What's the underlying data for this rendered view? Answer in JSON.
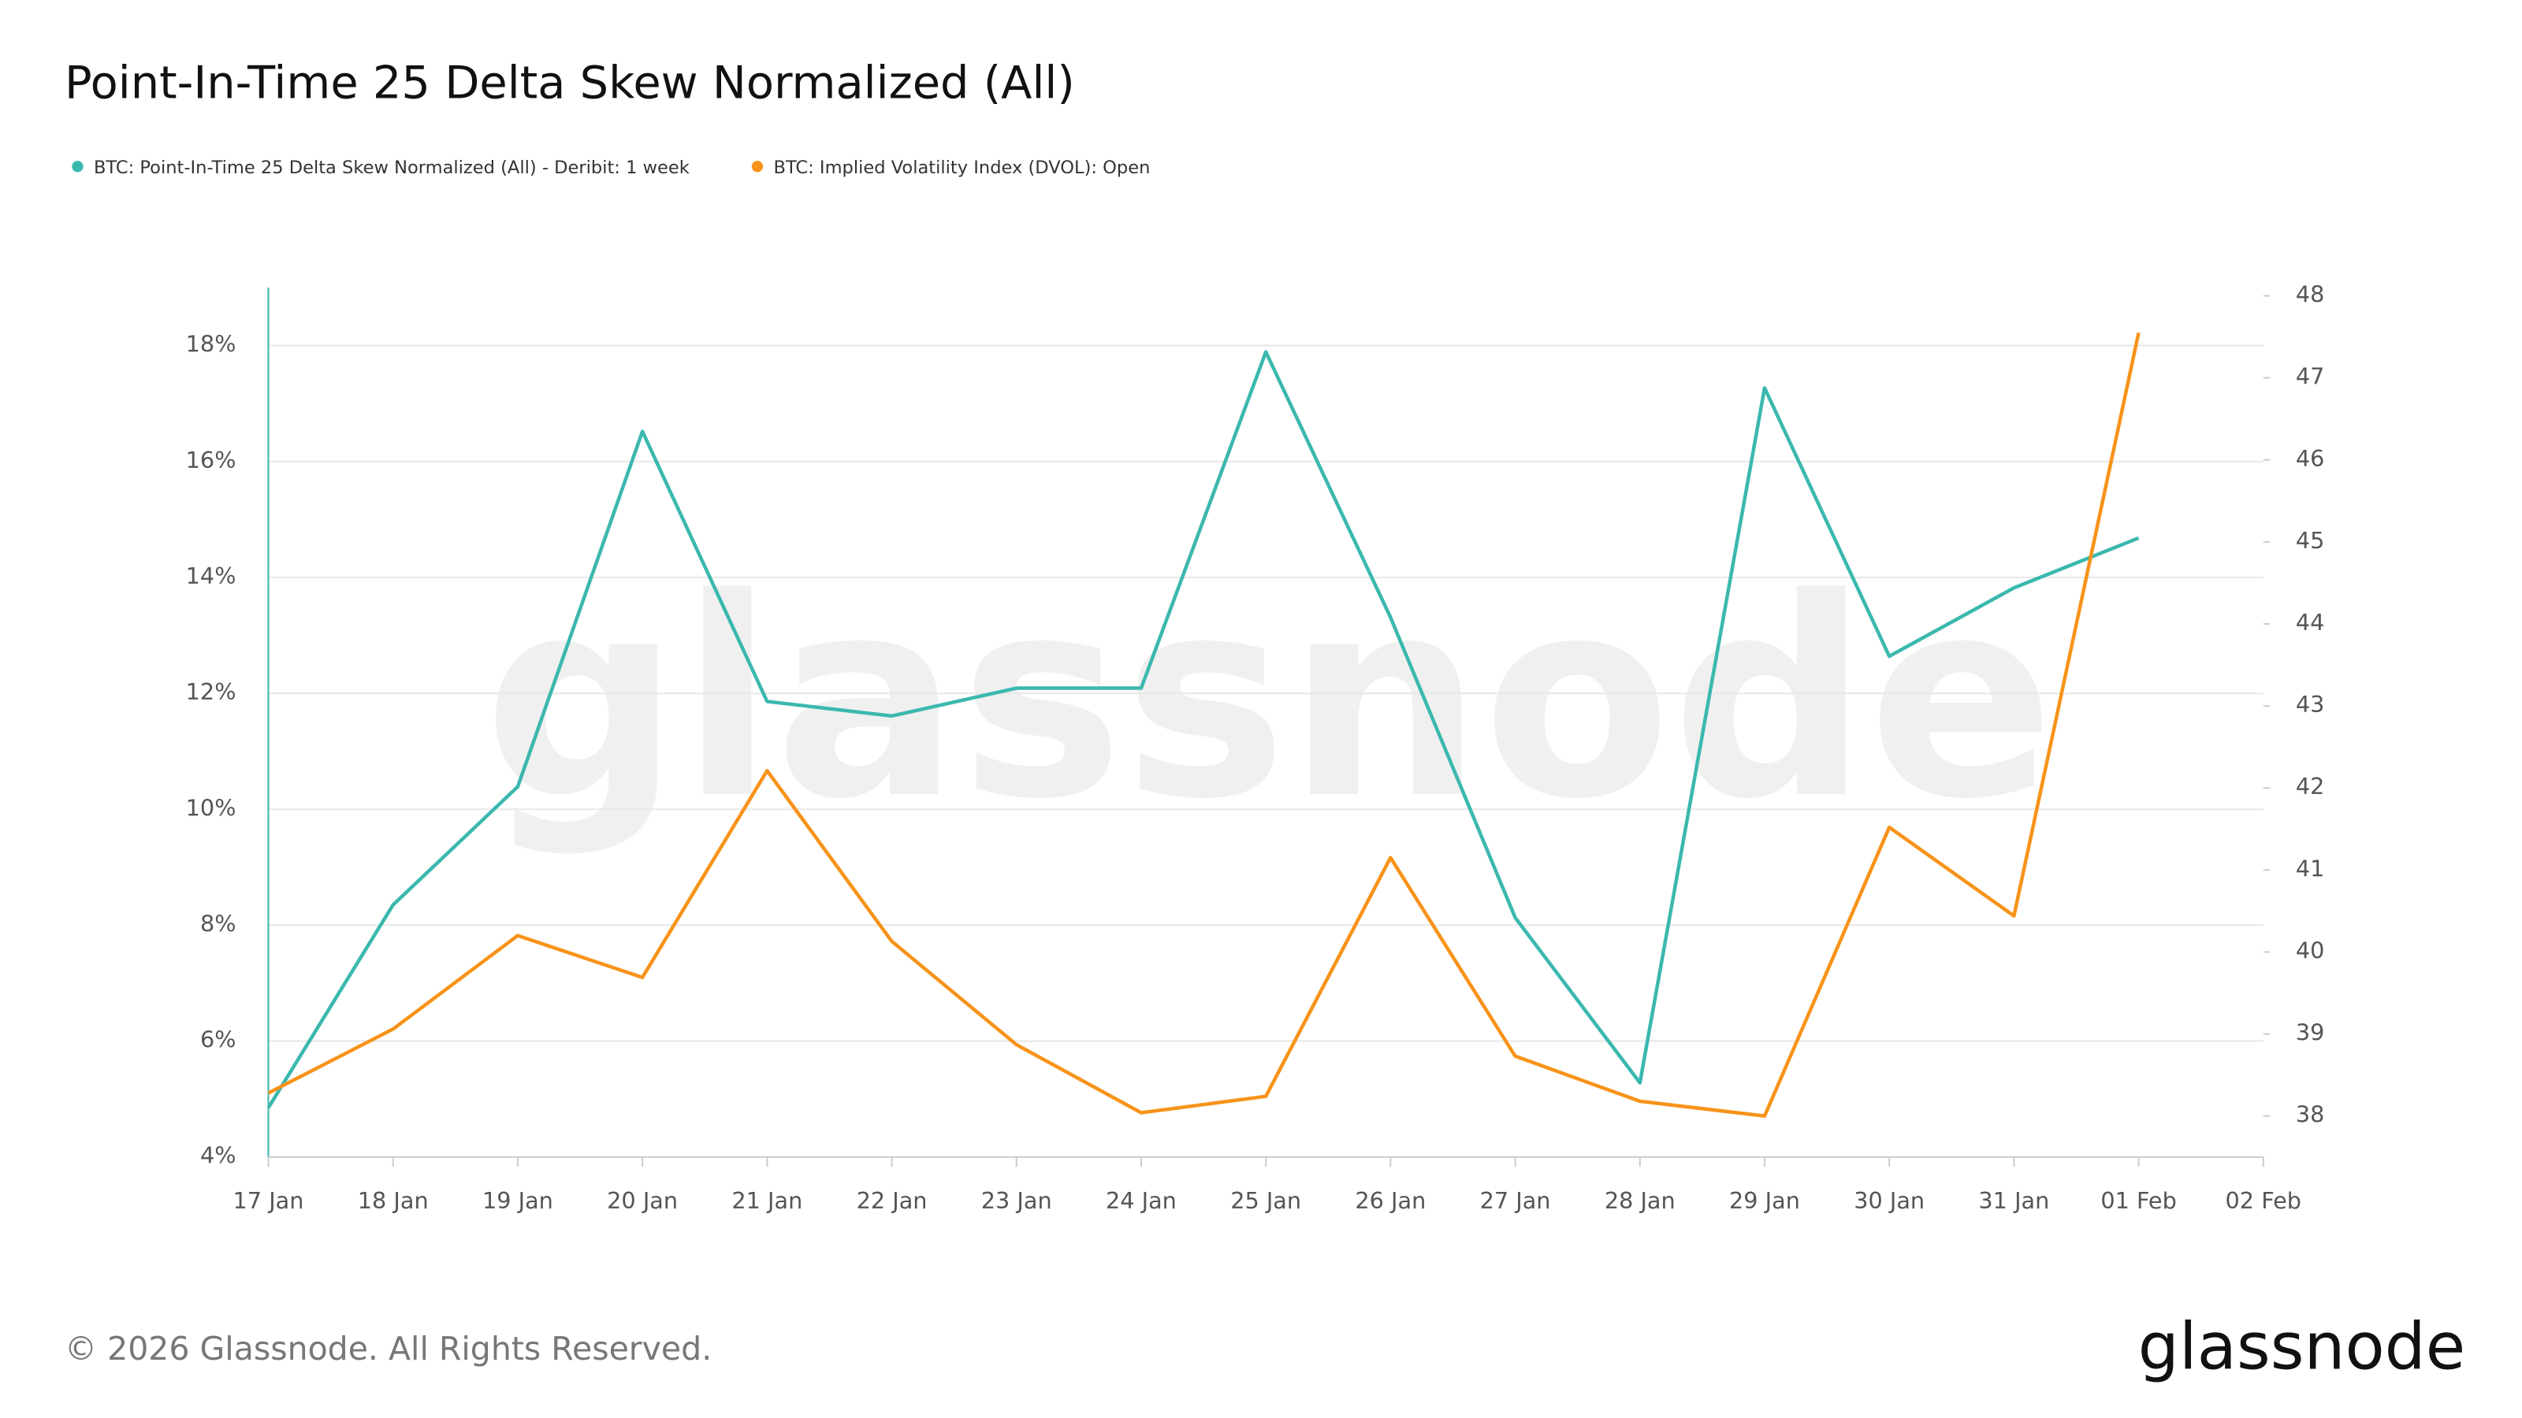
{
  "chart_data": {
    "type": "line",
    "title": "Point-In-Time 25 Delta Skew Normalized (All)",
    "watermark": "glassnode",
    "footer": "© 2026 Glassnode. All Rights Reserved.",
    "brand": "glassnode",
    "categories": [
      "17 Jan",
      "18 Jan",
      "19 Jan",
      "20 Jan",
      "21 Jan",
      "22 Jan",
      "23 Jan",
      "24 Jan",
      "25 Jan",
      "26 Jan",
      "27 Jan",
      "28 Jan",
      "29 Jan",
      "30 Jan",
      "31 Jan",
      "01 Feb",
      "02 Feb"
    ],
    "series": [
      {
        "name": "BTC: Point-In-Time 25 Delta Skew Normalized (All) - Deribit: 1 week",
        "color": "#3bb8ae",
        "axis": "y",
        "values": [
          4.85,
          8.35,
          10.39,
          16.52,
          11.86,
          11.61,
          12.09,
          12.09,
          17.89,
          13.31,
          8.13,
          5.28,
          17.27,
          12.64,
          13.82,
          14.68,
          null
        ]
      },
      {
        "name": "BTC: Implied Volatility Index (DVOL): Open",
        "color": "#f7931a",
        "axis": "y2",
        "values": [
          38.28,
          39.06,
          40.2,
          39.69,
          42.21,
          40.13,
          38.87,
          38.04,
          38.24,
          41.15,
          38.73,
          38.18,
          38.0,
          41.52,
          40.44,
          47.55,
          null
        ]
      }
    ],
    "ylim": [
      4,
      19
    ],
    "yticks": [
      {
        "value": 4,
        "label": "4%"
      },
      {
        "value": 6,
        "label": "6%"
      },
      {
        "value": 8,
        "label": "8%"
      },
      {
        "value": 10,
        "label": "10%"
      },
      {
        "value": 12,
        "label": "12%"
      },
      {
        "value": 14,
        "label": "14%"
      },
      {
        "value": 16,
        "label": "16%"
      },
      {
        "value": 18,
        "label": "18%"
      }
    ],
    "y2lim": [
      37.5,
      48.1
    ],
    "y2ticks": [
      38,
      39,
      40,
      41,
      42,
      43,
      44,
      45,
      46,
      47,
      48
    ],
    "grid": true
  }
}
